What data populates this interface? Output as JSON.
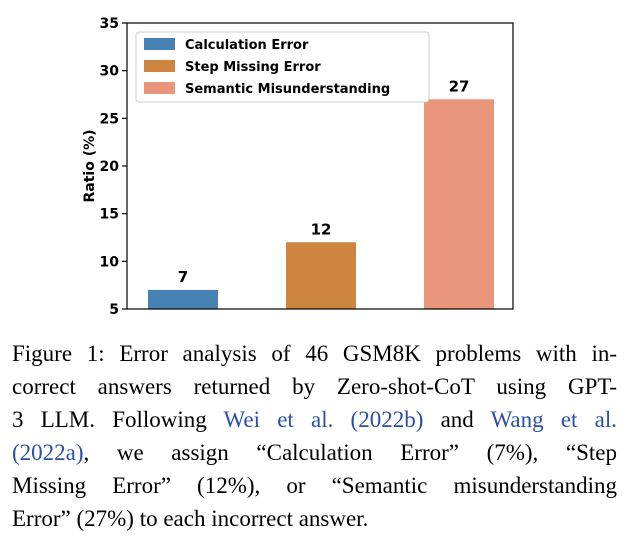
{
  "chart_data": {
    "type": "bar",
    "categories": [
      "Calculation Error",
      "Step Missing Error",
      "Semantic Misunderstanding"
    ],
    "values": [
      7,
      12,
      27
    ],
    "data_labels": [
      "7",
      "12",
      "27"
    ],
    "colors": [
      "#4682b4",
      "#cd853f",
      "#e9967a"
    ],
    "ylabel": "Ratio (%)",
    "xlabel": "",
    "ylim": [
      5,
      35
    ],
    "yticks": [
      5,
      10,
      15,
      20,
      25,
      30,
      35
    ],
    "grid": false,
    "legend": {
      "entries": [
        "Calculation Error",
        "Step Missing Error",
        "Semantic Misunderstanding"
      ],
      "placement": "top-left"
    }
  },
  "caption": {
    "line1": "Figure 1: Error analysis of 46 GSM8K problems with in-",
    "line2": "correct answers returned by Zero-shot-CoT using GPT-",
    "line3_pre": "3 LLM. Following ",
    "line3_link1": "Wei et al. (2022b)",
    "line3_mid": " and ",
    "line3_link2": "Wang et al.",
    "line4_link": "(2022a)",
    "line4_post": ", we assign “Calculation Error” (7%), “Step",
    "line5": "Missing Error” (12%), or “Semantic misunderstanding",
    "line6": "Error” (27%) to each incorrect answer."
  }
}
